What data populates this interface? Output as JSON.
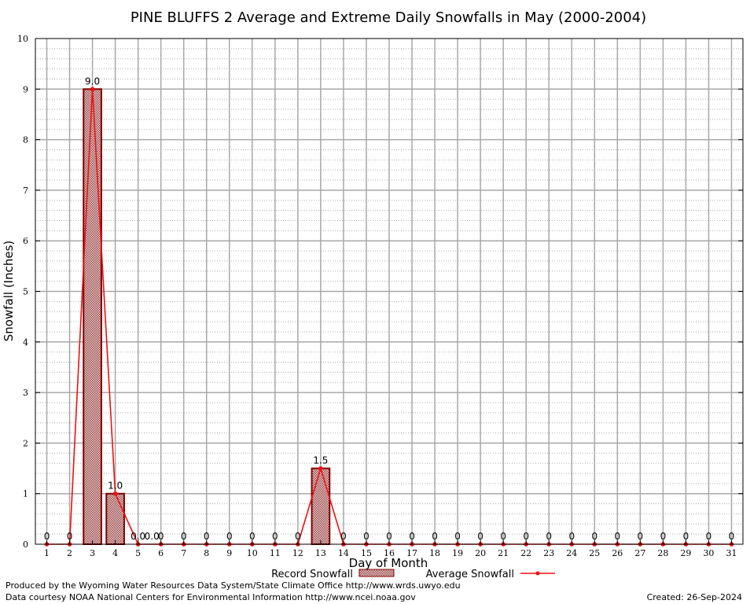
{
  "chart_data": {
    "type": "bar",
    "title": "PINE BLUFFS 2 Average and Extreme Daily Snowfalls in May (2000-2004)",
    "xlabel": "Day of Month",
    "ylabel": "Snowfall (Inches)",
    "ylim": [
      0,
      10
    ],
    "y_ticks": [
      "0",
      "1",
      "2",
      "3",
      "4",
      "5",
      "6",
      "7",
      "8",
      "9",
      "10"
    ],
    "categories": [
      "1",
      "2",
      "3",
      "4",
      "5",
      "6",
      "7",
      "8",
      "9",
      "10",
      "11",
      "12",
      "13",
      "14",
      "15",
      "16",
      "17",
      "18",
      "19",
      "20",
      "21",
      "22",
      "23",
      "24",
      "25",
      "26",
      "27",
      "28",
      "29",
      "30",
      "31"
    ],
    "series": [
      {
        "name": "Record Snowfall",
        "kind": "bar",
        "values": [
          0,
          0,
          9.0,
          1.0,
          0,
          0,
          0,
          0,
          0,
          0,
          0,
          0,
          1.5,
          0,
          0,
          0,
          0,
          0,
          0,
          0,
          0,
          0,
          0,
          0,
          0,
          0,
          0,
          0,
          0,
          0,
          0
        ],
        "labels": [
          "0",
          "0",
          "9.0",
          "1.0",
          "0.0",
          "0",
          "0",
          "0",
          "0",
          "0",
          "0",
          "0",
          "1.5",
          "0",
          "0",
          "0",
          "0",
          "0",
          "0",
          "0",
          "0",
          "0",
          "0",
          "0",
          "0",
          "0",
          "0",
          "0",
          "0",
          "0",
          "0"
        ]
      },
      {
        "name": "Average Snowfall",
        "kind": "line",
        "values": [
          0,
          0,
          9.0,
          1.0,
          0,
          0,
          0,
          0,
          0,
          0,
          0,
          0,
          1.5,
          0,
          0,
          0,
          0,
          0,
          0,
          0,
          0,
          0,
          0,
          0,
          0,
          0,
          0,
          0,
          0,
          0,
          0
        ],
        "labels": [
          "",
          "",
          "",
          "",
          "0.0",
          "",
          "",
          "",
          "",
          "",
          "",
          "",
          "",
          "",
          "",
          "",
          "",
          "",
          "",
          "",
          "",
          "",
          "",
          "",
          "",
          "",
          "",
          "",
          "",
          "",
          ""
        ]
      }
    ],
    "colors": {
      "bar_fill": "#b07070",
      "bar_stroke": "#800000",
      "line": "#ee1111"
    },
    "grid": true,
    "legend_position": "bottom-center"
  },
  "footer": {
    "produced_by": "Produced by the Wyoming Water Resources Data System/State Climate Office http://www.wrds.uwyo.edu",
    "data_courtesy": "Data courtesy NOAA National Centers for Environmental Information http://www.ncei.noaa.gov",
    "created": "Created:  26-Sep-2024"
  }
}
